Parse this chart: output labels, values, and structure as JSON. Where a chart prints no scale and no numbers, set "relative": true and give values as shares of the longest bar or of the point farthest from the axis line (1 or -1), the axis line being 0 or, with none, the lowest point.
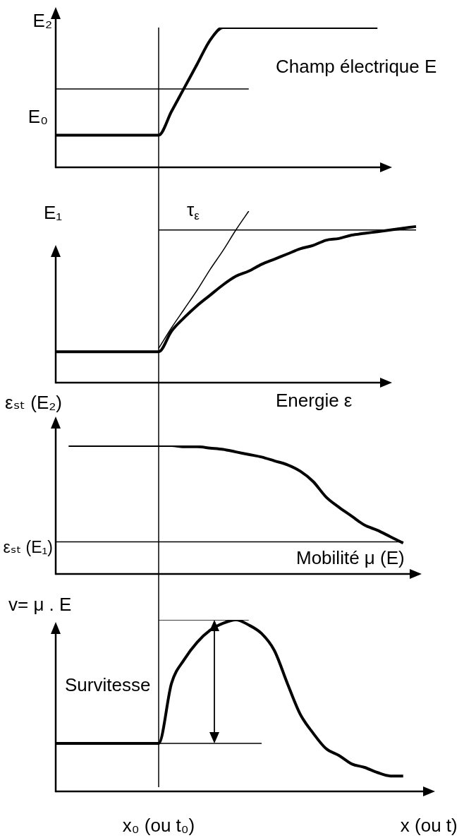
{
  "chart_data": [
    {
      "type": "line",
      "relative": true,
      "categories": [
        null,
        null,
        null,
        null,
        null,
        null,
        null,
        null,
        null,
        null,
        null,
        null,
        null,
        null,
        null,
        null,
        null,
        null,
        null,
        null,
        null,
        null,
        null,
        null,
        null,
        null,
        null,
        null,
        null,
        null
      ],
      "series": [
        {
          "color": "#000000",
          "values": [
            0.23,
            0.23,
            0.23,
            0.23,
            0.23,
            0.23,
            0.23,
            0.23,
            0.23,
            0.4,
            0.57,
            0.74,
            0.91,
            1,
            1,
            1,
            1,
            1,
            1,
            1,
            1,
            1,
            1,
            1,
            1,
            1,
            null,
            null,
            null,
            null
          ]
        },
        {
          "color": "#000000",
          "values": [
            0.56,
            0.56,
            0.56,
            0.56,
            0.56,
            0.56,
            0.56,
            0.56,
            0.56,
            0.56,
            0.56,
            0.56,
            0.56,
            0.56,
            0.56,
            0.56,
            null,
            null,
            null,
            null,
            null,
            null,
            null,
            null,
            null,
            null,
            null,
            null,
            null,
            null
          ]
        }
      ],
      "annotations": [
        "E₂",
        "E₀",
        "Champ électrique E"
      ]
    },
    {
      "type": "line",
      "relative": true,
      "categories": [
        null,
        null,
        null,
        null,
        null,
        null,
        null,
        null,
        null,
        null,
        null,
        null,
        null,
        null,
        null,
        null,
        null,
        null,
        null,
        null,
        null,
        null,
        null,
        null,
        null,
        null,
        null,
        null,
        null,
        null
      ],
      "series": [
        {
          "color": "#000000",
          "values": [
            0.18,
            0.18,
            0.18,
            0.18,
            0.18,
            0.18,
            0.18,
            0.18,
            0.18,
            0.3,
            0.38,
            0.45,
            0.51,
            0.57,
            0.62,
            0.65,
            0.69,
            0.72,
            0.75,
            0.78,
            0.8,
            0.83,
            0.84,
            0.86,
            0.87,
            0.88,
            0.89,
            0.9,
            0.91,
            null
          ]
        },
        {
          "color": "#000000",
          "values": [
            null,
            null,
            null,
            null,
            null,
            null,
            null,
            null,
            0.89,
            0.89,
            0.89,
            0.89,
            0.89,
            0.89,
            0.89,
            0.89,
            0.89,
            0.89,
            0.89,
            0.89,
            0.89,
            0.89,
            0.89,
            0.89,
            0.89,
            0.89,
            0.89,
            0.89,
            0.89,
            null
          ]
        },
        {
          "color": "#000000",
          "values": [
            null,
            null,
            null,
            null,
            null,
            null,
            null,
            null,
            0.2,
            0.32,
            0.43,
            0.54,
            0.66,
            0.77,
            0.89,
            1,
            null,
            null,
            null,
            null,
            null,
            null,
            null,
            null,
            null,
            null,
            null,
            null,
            null,
            null
          ]
        }
      ],
      "annotations": [
        "E₁",
        "τ$_{ε}$",
        "Energie ε"
      ]
    },
    {
      "type": "line",
      "relative": true,
      "categories": [
        null,
        null,
        null,
        null,
        null,
        null,
        null,
        null,
        null,
        null,
        null,
        null,
        null,
        null,
        null,
        null,
        null,
        null,
        null,
        null,
        null,
        null,
        null,
        null,
        null,
        null,
        null,
        null,
        null,
        null
      ],
      "series": [
        {
          "color": "#000000",
          "values": [
            null,
            1,
            1,
            1,
            1,
            1,
            1,
            1,
            1,
            1,
            0.99,
            0.99,
            0.98,
            0.97,
            0.95,
            0.93,
            0.91,
            0.88,
            0.85,
            0.8,
            0.72,
            0.6,
            0.52,
            0.45,
            0.38,
            0.34,
            0.29,
            0.24,
            null,
            null
          ]
        },
        {
          "color": "#000000",
          "values": [
            0.25,
            0.25,
            0.25,
            0.25,
            0.25,
            0.25,
            0.25,
            0.25,
            0.25,
            0.25,
            0.25,
            0.25,
            0.25,
            0.25,
            0.25,
            0.25,
            0.25,
            0.25,
            0.25,
            0.25,
            0.25,
            0.25,
            0.25,
            0.25,
            0.25,
            0.25,
            0.25,
            0.25,
            null,
            null
          ]
        }
      ],
      "annotations": [
        "εₛₜ (E₂)",
        "εₛₜ (E₁)",
        "Mobilité μ (E)"
      ]
    },
    {
      "type": "line",
      "relative": true,
      "tick_labels": "x",
      "categories": [
        null,
        null,
        null,
        null,
        null,
        null,
        null,
        null,
        "x₀ (ou t₀)",
        null,
        null,
        null,
        null,
        null,
        null,
        null,
        null,
        null,
        null,
        null,
        null,
        null,
        null,
        null,
        null,
        null,
        null,
        null,
        null,
        "x (ou t)"
      ],
      "series": [
        {
          "color": "#000000",
          "values": [
            0.28,
            0.28,
            0.28,
            0.28,
            0.28,
            0.28,
            0.28,
            0.28,
            0.28,
            0.63,
            0.77,
            0.87,
            0.94,
            0.98,
            1,
            0.97,
            0.92,
            0.82,
            0.63,
            0.45,
            0.34,
            0.25,
            0.21,
            0.16,
            0.14,
            0.11,
            0.09,
            0.09,
            null,
            null
          ]
        },
        {
          "color": "#000000",
          "values": [
            null,
            null,
            null,
            null,
            null,
            null,
            null,
            null,
            1,
            1,
            1,
            1,
            1,
            1,
            1,
            1,
            null,
            null,
            null,
            null,
            null,
            null,
            null,
            null,
            null,
            null,
            null,
            null,
            null,
            null
          ]
        },
        {
          "color": "#000000",
          "values": [
            null,
            null,
            null,
            null,
            null,
            null,
            null,
            null,
            0.28,
            0.28,
            0.28,
            0.28,
            0.28,
            0.28,
            0.28,
            0.28,
            0.28,
            null,
            null,
            null,
            null,
            null,
            null,
            null,
            null,
            null,
            null,
            null,
            null,
            null
          ]
        }
      ],
      "ref_lines": [
        {
          "axis": "x",
          "value": "x₀ (ou t₀)"
        }
      ],
      "annotations": [
        "v= μ . E",
        "Survitesse"
      ]
    }
  ]
}
